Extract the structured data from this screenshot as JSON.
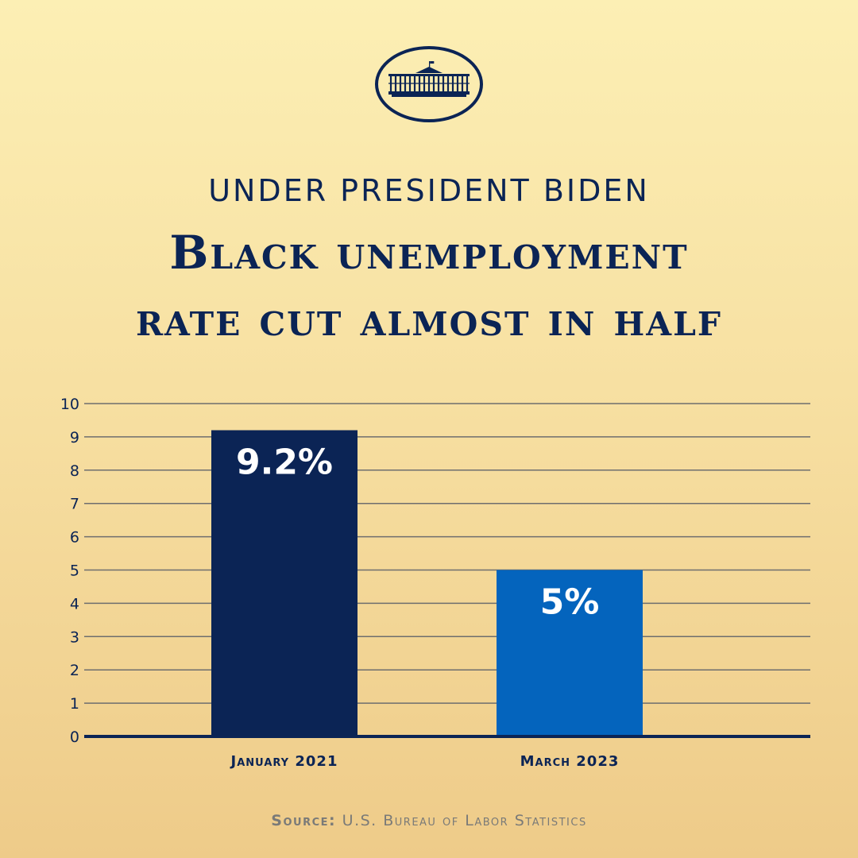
{
  "header": {
    "kicker": "UNDER PRESIDENT BIDEN",
    "headline_line1": "Black unemployment",
    "headline_line2": "rate cut almost in half"
  },
  "source": {
    "label": "Source:",
    "text": "U.S. Bureau of Labor Statistics"
  },
  "colors": {
    "navy": "#0b2455",
    "blue": "#0464bd",
    "background_top": "#fcefb4",
    "background_bottom": "#eecb89"
  },
  "chart_data": {
    "type": "bar",
    "categories": [
      "January 2021",
      "March 2023"
    ],
    "values": [
      9.2,
      5
    ],
    "data_labels": [
      "9.2%",
      "5%"
    ],
    "bar_colors": [
      "#0b2455",
      "#0464bd"
    ],
    "ylim": [
      0,
      10
    ],
    "yticks": [
      0,
      1,
      2,
      3,
      4,
      5,
      6,
      7,
      8,
      9,
      10
    ],
    "grid": true,
    "legend": "none"
  }
}
